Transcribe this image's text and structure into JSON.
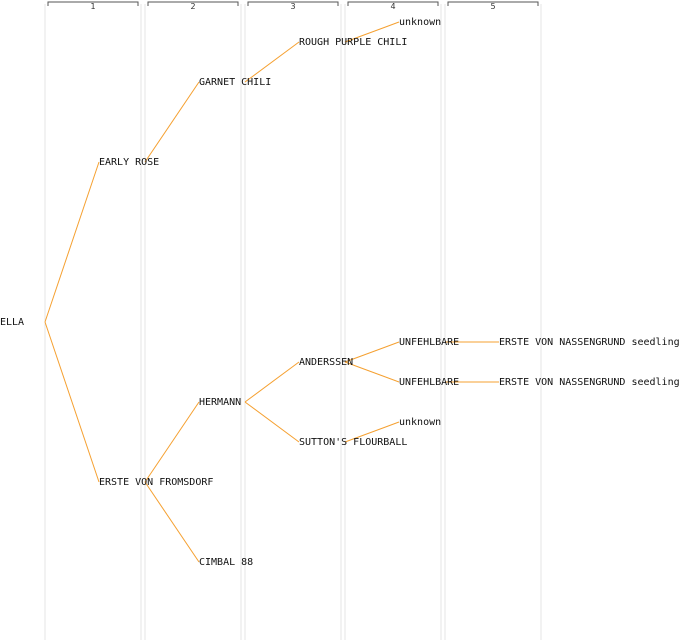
{
  "pedigree": {
    "subject": "ELLA",
    "generation_headers": [
      "1",
      "2",
      "3",
      "4",
      "5"
    ],
    "colors": {
      "connector": "#f5a030",
      "column_divider": "#e6e6e6",
      "bracket": "#555555",
      "text": "#111111"
    },
    "nodes": [
      {
        "id": "ella",
        "label": "ELLA",
        "gen": 0,
        "parent": null
      },
      {
        "id": "early-rose",
        "label": "EARLY ROSE",
        "gen": 1,
        "parent": "ella"
      },
      {
        "id": "erste-von-fromsdorf",
        "label": "ERSTE VON FROMSDORF",
        "gen": 1,
        "parent": "ella"
      },
      {
        "id": "garnet-chili",
        "label": "GARNET CHILI",
        "gen": 2,
        "parent": "early-rose"
      },
      {
        "id": "hermann",
        "label": "HERMANN",
        "gen": 2,
        "parent": "erste-von-fromsdorf"
      },
      {
        "id": "cimbal-88",
        "label": "CIMBAL 88",
        "gen": 2,
        "parent": "erste-von-fromsdorf"
      },
      {
        "id": "rough-purple-chili",
        "label": "ROUGH PURPLE CHILI",
        "gen": 3,
        "parent": "garnet-chili"
      },
      {
        "id": "anderssen",
        "label": "ANDERSSEN",
        "gen": 3,
        "parent": "hermann"
      },
      {
        "id": "suttons-flourball",
        "label": "SUTTON'S FLOURBALL",
        "gen": 3,
        "parent": "hermann"
      },
      {
        "id": "unknown-1",
        "label": "unknown",
        "gen": 4,
        "parent": "rough-purple-chili"
      },
      {
        "id": "unfehlbare-1",
        "label": "UNFEHLBARE",
        "gen": 4,
        "parent": "anderssen"
      },
      {
        "id": "unfehlbare-2",
        "label": "UNFEHLBARE",
        "gen": 4,
        "parent": "anderssen"
      },
      {
        "id": "unknown-2",
        "label": "unknown",
        "gen": 4,
        "parent": "suttons-flourball"
      },
      {
        "id": "erste-von-nassengrund-seedling-1",
        "label": "ERSTE VON NASSENGRUND seedling",
        "gen": 5,
        "parent": "unfehlbare-1"
      },
      {
        "id": "erste-von-nassengrund-seedling-2",
        "label": "ERSTE VON NASSENGRUND seedling",
        "gen": 5,
        "parent": "unfehlbare-2"
      }
    ]
  }
}
